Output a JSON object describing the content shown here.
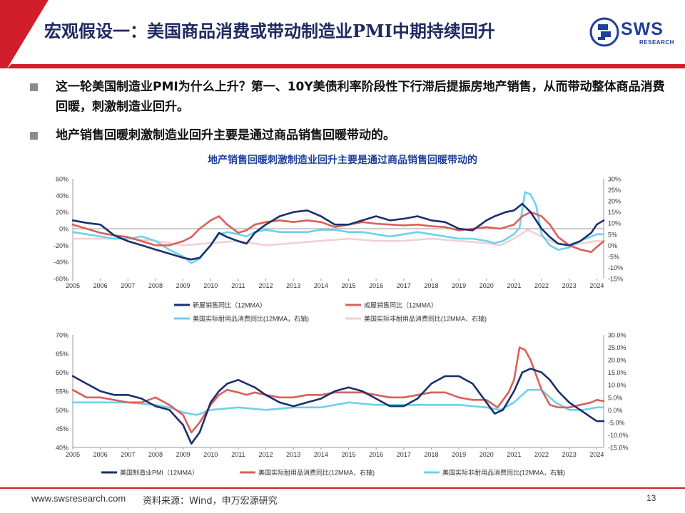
{
  "header": {
    "title": "宏观假设一：美国商品消费或带动制造业PMI中期持续回升",
    "logo_text": "SWS",
    "logo_sub": "RESEARCH"
  },
  "bullets": [
    "这一轮美国制造业PMI为什么上升？第一、10Y美债利率阶段性下行滞后提振房地产销售，从而带动整体商品消费回暖，刺激制造业回升。",
    "地产销售回暖刺激制造业回升主要是通过商品销售回暖带动的。"
  ],
  "footer": {
    "site": "www.swsresearch.com",
    "source": "资料来源：Wind，申万宏源研究",
    "page": "13"
  },
  "colors": {
    "navy": "#1b2f6e",
    "red": "#d9605a",
    "cyan": "#6fd1ea",
    "pink": "#f3cfd3",
    "brand_red": "#d21e2b",
    "brand_blue": "#1f3f99"
  },
  "chart_data": [
    {
      "type": "line",
      "title": "地产销售回暖刺激制造业回升主要是通过商品销售回暖带动的",
      "x_ticks": [
        "2005",
        "2006",
        "2007",
        "2008",
        "2009",
        "2010",
        "2011",
        "2012",
        "2013",
        "2014",
        "2015",
        "2016",
        "2017",
        "2018",
        "2019",
        "2020",
        "2021",
        "2022",
        "2023",
        "2024"
      ],
      "x_range": [
        2005,
        2024.25
      ],
      "y_left": {
        "range": [
          -60,
          60
        ],
        "ticks": [
          "-60%",
          "-40%",
          "-20%",
          "0%",
          "20%",
          "40%",
          "60%"
        ],
        "values": [
          -60,
          -40,
          -20,
          0,
          20,
          40,
          60
        ]
      },
      "y_right": {
        "range": [
          -15,
          30
        ],
        "ticks": [
          "-15%",
          "-10%",
          "-5%",
          "0%",
          "5%",
          "10%",
          "15%",
          "20%",
          "25%",
          "30%"
        ],
        "values": [
          -15,
          -10,
          -5,
          0,
          5,
          10,
          15,
          20,
          25,
          30
        ]
      },
      "legend": "bottom",
      "series": [
        {
          "name": "新屋销售同比（12MMA）",
          "axis": "left",
          "color": "navy",
          "x": [
            2005,
            2005.5,
            2006,
            2006.5,
            2007,
            2007.5,
            2008,
            2008.5,
            2009,
            2009.3,
            2009.6,
            2010,
            2010.3,
            2010.6,
            2011,
            2011.3,
            2011.6,
            2012,
            2012.5,
            2013,
            2013.5,
            2014,
            2014.5,
            2015,
            2015.5,
            2016,
            2016.5,
            2017,
            2017.5,
            2018,
            2018.5,
            2019,
            2019.5,
            2020,
            2020.3,
            2020.7,
            2021,
            2021.3,
            2021.6,
            2022,
            2022.3,
            2022.6,
            2023,
            2023.4,
            2023.8,
            2024,
            2024.25
          ],
          "y": [
            10,
            7,
            5,
            -8,
            -15,
            -20,
            -25,
            -30,
            -35,
            -37,
            -35,
            -20,
            -5,
            -10,
            -15,
            -18,
            -5,
            5,
            15,
            20,
            22,
            15,
            5,
            5,
            10,
            15,
            10,
            12,
            15,
            10,
            8,
            0,
            -2,
            10,
            15,
            20,
            22,
            30,
            20,
            0,
            -10,
            -18,
            -20,
            -15,
            -5,
            5,
            10
          ]
        },
        {
          "name": "成屋销售同比（12MMA）",
          "axis": "left",
          "color": "red",
          "x": [
            2005,
            2005.5,
            2006,
            2006.5,
            2007,
            2007.5,
            2008,
            2008.5,
            2009,
            2009.3,
            2009.6,
            2010,
            2010.3,
            2010.6,
            2011,
            2011.3,
            2011.6,
            2012,
            2012.5,
            2013,
            2013.5,
            2014,
            2014.5,
            2015,
            2015.5,
            2016,
            2016.5,
            2017,
            2017.5,
            2018,
            2018.5,
            2019,
            2019.5,
            2020,
            2020.5,
            2021,
            2021.3,
            2021.6,
            2022,
            2022.3,
            2022.6,
            2023,
            2023.4,
            2023.8,
            2024,
            2024.25
          ],
          "y": [
            5,
            0,
            -5,
            -8,
            -10,
            -15,
            -20,
            -20,
            -15,
            -10,
            0,
            10,
            15,
            5,
            -5,
            -2,
            5,
            8,
            10,
            8,
            10,
            8,
            2,
            5,
            8,
            6,
            5,
            4,
            5,
            3,
            2,
            -2,
            0,
            2,
            0,
            5,
            15,
            20,
            15,
            5,
            -10,
            -20,
            -25,
            -28,
            -22,
            -15
          ]
        },
        {
          "name": "美国实际耐用品消费同比(12MMA，右轴)",
          "axis": "right",
          "color": "cyan",
          "x": [
            2005,
            2005.5,
            2006,
            2006.5,
            2007,
            2007.5,
            2008,
            2008.5,
            2009,
            2009.3,
            2009.6,
            2010,
            2010.3,
            2010.6,
            2011,
            2011.3,
            2011.6,
            2012,
            2012.5,
            2013,
            2013.5,
            2014,
            2014.5,
            2015,
            2015.5,
            2016,
            2016.5,
            2017,
            2017.5,
            2018,
            2018.5,
            2019,
            2019.5,
            2020,
            2020.3,
            2020.6,
            2021,
            2021.2,
            2021.4,
            2021.6,
            2021.8,
            2022,
            2022.3,
            2022.6,
            2023,
            2023.4,
            2023.8,
            2024,
            2024.25
          ],
          "y": [
            6,
            5,
            4,
            3,
            3,
            4,
            2,
            -2,
            -5,
            -8,
            -6,
            0,
            5,
            6,
            5,
            4,
            6,
            7,
            6,
            6,
            6,
            7,
            7,
            6,
            6,
            5,
            4,
            5,
            6,
            5,
            4,
            3,
            3,
            2,
            1,
            2,
            5,
            8,
            24,
            23,
            18,
            5,
            0,
            -2,
            -1,
            2,
            4,
            5,
            5
          ]
        },
        {
          "name": "美国实际非耐用品消费同比(12MMA，右轴)",
          "axis": "right",
          "color": "pink",
          "x": [
            2005,
            2006,
            2007,
            2008,
            2009,
            2010,
            2011,
            2012,
            2013,
            2014,
            2015,
            2016,
            2017,
            2018,
            2019,
            2020,
            2020.5,
            2021,
            2021.5,
            2022,
            2022.5,
            2023,
            2023.5,
            2024,
            2024.25
          ],
          "y": [
            3,
            3,
            3,
            2,
            0,
            1,
            2,
            0,
            1,
            2,
            3,
            2,
            2,
            3,
            2,
            1,
            0,
            3,
            7,
            4,
            1,
            0,
            1,
            2,
            2
          ]
        }
      ]
    },
    {
      "type": "line",
      "title": "",
      "x_ticks": [
        "2005",
        "2006",
        "2007",
        "2008",
        "2009",
        "2010",
        "2011",
        "2012",
        "2013",
        "2014",
        "2015",
        "2016",
        "2017",
        "2018",
        "2019",
        "2020",
        "2021",
        "2022",
        "2023",
        "2024"
      ],
      "x_range": [
        2005,
        2024.25
      ],
      "y_left": {
        "range": [
          40,
          70
        ],
        "ticks": [
          "40%",
          "45%",
          "50%",
          "55%",
          "60%",
          "65%",
          "70%"
        ],
        "values": [
          40,
          45,
          50,
          55,
          60,
          65,
          70
        ]
      },
      "y_right": {
        "range": [
          -15,
          30
        ],
        "ticks": [
          "-15.0%",
          "-10.0%",
          "-5.0%",
          "0.0%",
          "5.0%",
          "10.0%",
          "15.0%",
          "20.0%",
          "25.0%",
          "30.0%"
        ],
        "values": [
          -15,
          -10,
          -5,
          0,
          5,
          10,
          15,
          20,
          25,
          30
        ]
      },
      "legend": "bottom",
      "series": [
        {
          "name": "美国制造业PMI（12MMA）",
          "axis": "left",
          "color": "navy",
          "x": [
            2005,
            2005.5,
            2006,
            2006.5,
            2007,
            2007.5,
            2008,
            2008.5,
            2009,
            2009.3,
            2009.6,
            2010,
            2010.3,
            2010.6,
            2011,
            2011.3,
            2011.6,
            2012,
            2012.5,
            2013,
            2013.5,
            2014,
            2014.5,
            2015,
            2015.5,
            2016,
            2016.5,
            2017,
            2017.5,
            2018,
            2018.5,
            2019,
            2019.5,
            2020,
            2020.3,
            2020.6,
            2021,
            2021.3,
            2021.6,
            2022,
            2022.3,
            2022.6,
            2023,
            2023.4,
            2023.8,
            2024,
            2024.25
          ],
          "y": [
            59,
            57,
            55,
            54,
            54,
            53,
            51,
            50,
            46,
            41,
            44,
            52,
            55,
            57,
            58,
            57,
            56,
            54,
            52,
            51,
            52,
            53,
            55,
            56,
            55,
            53,
            51,
            51,
            53,
            57,
            59,
            59,
            57,
            52,
            49,
            50,
            55,
            60,
            61,
            60,
            58,
            55,
            52,
            50,
            48,
            47,
            47
          ]
        },
        {
          "name": "美国实际耐用品消费同比(12MMA，右轴)",
          "axis": "right",
          "color": "red",
          "x": [
            2005,
            2005.5,
            2006,
            2006.5,
            2007,
            2007.5,
            2008,
            2008.5,
            2009,
            2009.3,
            2009.6,
            2010,
            2010.3,
            2010.6,
            2011,
            2011.3,
            2011.6,
            2012,
            2012.5,
            2013,
            2013.5,
            2014,
            2014.5,
            2015,
            2015.5,
            2016,
            2016.5,
            2017,
            2017.5,
            2018,
            2018.5,
            2019,
            2019.5,
            2020,
            2020.4,
            2020.8,
            2021,
            2021.2,
            2021.4,
            2021.6,
            2022,
            2022.3,
            2022.6,
            2023,
            2023.4,
            2023.8,
            2024,
            2024.25
          ],
          "y": [
            8,
            5,
            5,
            4,
            3,
            3,
            5,
            2,
            -2,
            -9,
            -5,
            2,
            6,
            8,
            7,
            6,
            7,
            6,
            5,
            5,
            6,
            6,
            7,
            7,
            7,
            6,
            5,
            5,
            6,
            7,
            7,
            5,
            4,
            4,
            1,
            7,
            12,
            25,
            24,
            20,
            8,
            2,
            1,
            1,
            2,
            3,
            4,
            3.5
          ]
        },
        {
          "name": "美国实际非耐用品消费同比(12MMA，右轴)",
          "axis": "right",
          "color": "cyan",
          "x": [
            2005,
            2006,
            2007,
            2008,
            2008.5,
            2009,
            2009.5,
            2010,
            2011,
            2012,
            2013,
            2014,
            2015,
            2016,
            2017,
            2018,
            2019,
            2020,
            2020.5,
            2021,
            2021.5,
            2022,
            2022.5,
            2023,
            2023.5,
            2024,
            2024.25
          ],
          "y": [
            3,
            3,
            3,
            2,
            1,
            -1,
            -2,
            0,
            1,
            0,
            1,
            1,
            3,
            2,
            2,
            2,
            2,
            1,
            0,
            3,
            8,
            8,
            3,
            0,
            0,
            1,
            1
          ]
        }
      ]
    }
  ]
}
